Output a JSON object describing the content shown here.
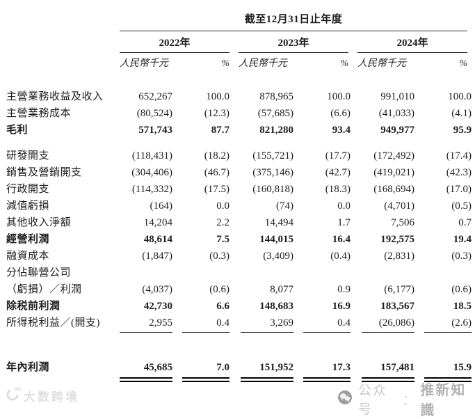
{
  "table": {
    "period_header": "截至12月31日止年度",
    "years": [
      {
        "label": "2022年",
        "unit": "人民幣千元",
        "pct": "%"
      },
      {
        "label": "2023年",
        "unit": "人民幣千元",
        "pct": "%"
      },
      {
        "label": "2024年",
        "unit": "人民幣千元",
        "pct": "%"
      }
    ],
    "rows": [
      {
        "label": "主營業務收益及收入",
        "cells": [
          "652,267",
          "100.0",
          "878,965",
          "100.0",
          "991,010",
          "100.0"
        ],
        "bold": false
      },
      {
        "label": "主營業務成本",
        "cells": [
          "(80,524)",
          "(12.3)",
          "(57,685)",
          "(6.6)",
          "(41,033)",
          "(4.1)"
        ],
        "bold": false
      },
      {
        "label": "毛利",
        "cells": [
          "571,743",
          "87.7",
          "821,280",
          "93.4",
          "949,977",
          "95.9"
        ],
        "bold": true
      },
      {
        "label": "研發開支",
        "cells": [
          "(118,431)",
          "(18.2)",
          "(155,721)",
          "(17.7)",
          "(172,492)",
          "(17.4)"
        ],
        "bold": false,
        "gap": "sm"
      },
      {
        "label": "銷售及營銷開支",
        "cells": [
          "(304,406)",
          "(46.7)",
          "(375,146)",
          "(42.7)",
          "(419,021)",
          "(42.3)"
        ],
        "bold": false
      },
      {
        "label": "行政開支",
        "cells": [
          "(114,332)",
          "(17.5)",
          "(160,818)",
          "(18.3)",
          "(168,694)",
          "(17.0)"
        ],
        "bold": false
      },
      {
        "label": "減值虧損",
        "cells": [
          "(164)",
          "0.0",
          "(74)",
          "0.0",
          "(4,701)",
          "(0.5)"
        ],
        "bold": false
      },
      {
        "label": "其他收入淨額",
        "cells": [
          "14,204",
          "2.2",
          "14,494",
          "1.7",
          "7,506",
          "0.7"
        ],
        "bold": false
      },
      {
        "label": "經營利潤",
        "cells": [
          "48,614",
          "7.5",
          "144,015",
          "16.4",
          "192,575",
          "19.4"
        ],
        "bold": true
      },
      {
        "label": "融資成本",
        "cells": [
          "(1,847)",
          "(0.3)",
          "(3,409)",
          "(0.4)",
          "(2,831)",
          "(0.3)"
        ],
        "bold": false
      },
      {
        "label": "分佔聯營公司",
        "cells": [
          "",
          "",
          "",
          "",
          "",
          ""
        ],
        "bold": false
      },
      {
        "label": "（虧損）／利潤",
        "cells": [
          "(4,037)",
          "(0.6)",
          "8,077",
          "0.9",
          "(6,177)",
          "(0.6)"
        ],
        "bold": false
      },
      {
        "label": "除税前利潤",
        "cells": [
          "42,730",
          "6.6",
          "148,683",
          "16.9",
          "183,567",
          "18.5"
        ],
        "bold": true
      },
      {
        "label": "所得税利益／(開支)",
        "cells": [
          "2,955",
          "0.4",
          "3,269",
          "0.4",
          "(26,086)",
          "(2.6)"
        ],
        "bold": false,
        "underline": true
      },
      {
        "label": "年內利潤",
        "cells": [
          "45,685",
          "7.0",
          "151,952",
          "17.3",
          "157,481",
          "15.9"
        ],
        "bold": true,
        "double_underline": true,
        "gap": "lg"
      }
    ]
  },
  "watermarks": {
    "left": {
      "text": "大数跨境"
    },
    "right": {
      "label": "公众号",
      "separator": "：",
      "name": "推新知識"
    }
  }
}
